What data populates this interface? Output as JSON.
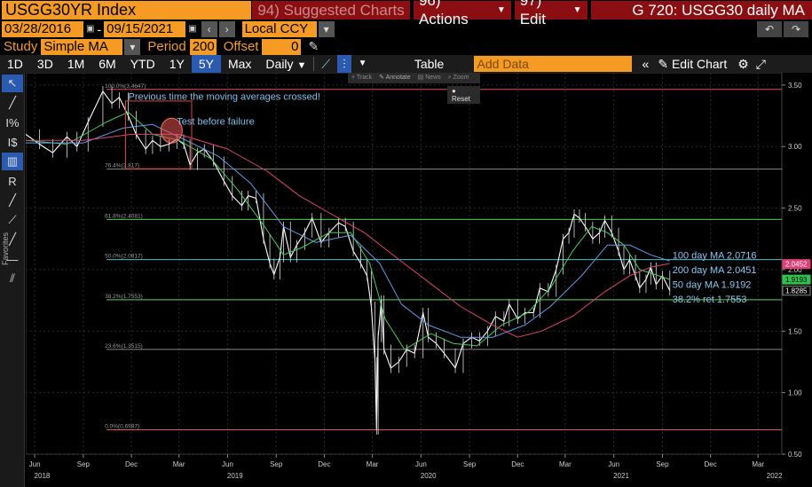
{
  "header": {
    "ticker": "USGG30YR Index",
    "suggested": "94) Suggested Charts",
    "actions": "96) Actions",
    "edit": "97) Edit",
    "chart_title": "G 720: USGG30 daily MA"
  },
  "range": {
    "start": "03/28/2016",
    "end": "09/15/2021",
    "currency": "Local CCY"
  },
  "study": {
    "label": "Study",
    "value": "Simple MA",
    "period_label": "Period",
    "period": "200",
    "offset_label": "Offset",
    "offset": "0"
  },
  "toolbar": {
    "periods": [
      "1D",
      "3D",
      "1M",
      "6M",
      "YTD",
      "1Y",
      "5Y",
      "Max"
    ],
    "active_period": "5Y",
    "frequency": "Daily",
    "table": "Table",
    "add_data": "Add Data",
    "edit_chart": "Edit Chart"
  },
  "chart_tools": {
    "items": [
      "Track",
      "Annotate",
      "News",
      "Zoom"
    ],
    "reset": "Reset"
  },
  "left_tools": {
    "favorites": "Favorites"
  },
  "chart_data": {
    "type": "line",
    "title": "",
    "ylim": [
      0.5,
      3.6
    ],
    "x_range": [
      "2018-05-15",
      "2022-04-15"
    ],
    "y_ticks": [
      "3.50",
      "3.00",
      "2.50",
      "2.00",
      "1.50",
      "1.00",
      "0.50"
    ],
    "x_tick_labels": [
      {
        "date": "2018-06-01",
        "label": "Jun"
      },
      {
        "date": "2018-09-01",
        "label": "Sep"
      },
      {
        "date": "2018-12-01",
        "label": "Dec"
      },
      {
        "date": "2019-03-01",
        "label": "Mar"
      },
      {
        "date": "2019-06-01",
        "label": "Jun"
      },
      {
        "date": "2019-09-01",
        "label": "Sep"
      },
      {
        "date": "2019-12-01",
        "label": "Dec"
      },
      {
        "date": "2020-03-01",
        "label": "Mar"
      },
      {
        "date": "2020-06-01",
        "label": "Jun"
      },
      {
        "date": "2020-09-01",
        "label": "Sep"
      },
      {
        "date": "2020-12-01",
        "label": "Dec"
      },
      {
        "date": "2021-03-01",
        "label": "Mar"
      },
      {
        "date": "2021-06-01",
        "label": "Jun"
      },
      {
        "date": "2021-09-01",
        "label": "Sep"
      },
      {
        "date": "2021-12-01",
        "label": "Dec"
      },
      {
        "date": "2022-03-01",
        "label": "Mar"
      }
    ],
    "year_labels": [
      {
        "date": "2018-06-15",
        "label": "2018"
      },
      {
        "date": "2019-06-15",
        "label": "2019"
      },
      {
        "date": "2020-06-15",
        "label": "2020"
      },
      {
        "date": "2021-06-15",
        "label": "2021"
      },
      {
        "date": "2022-04-01",
        "label": "2022"
      }
    ],
    "fib_levels": [
      {
        "label": "100.0%(3.4647)",
        "value": 3.4647,
        "color": "#e05060"
      },
      {
        "label": "76.4%(2.817)",
        "value": 2.817,
        "color": "#888888"
      },
      {
        "label": "61.8%(2.4081)",
        "value": 2.4081,
        "color": "#40d040"
      },
      {
        "label": "50.0%(2.0817)",
        "value": 2.0817,
        "color": "#40c0d0"
      },
      {
        "label": "38.2%(1.7553)",
        "value": 1.7553,
        "color": "#60d060"
      },
      {
        "label": "23.6%(1.3515)",
        "value": 1.3515,
        "color": "#888888"
      },
      {
        "label": "0.0%(0.6987)",
        "value": 0.6987,
        "color": "#e05060"
      }
    ],
    "series": [
      {
        "color": "#ffffff",
        "points": [
          [
            "2018-05-15",
            3.1
          ],
          [
            "2018-06-10",
            3.02
          ],
          [
            "2018-07-05",
            2.95
          ],
          [
            "2018-08-01",
            3.08
          ],
          [
            "2018-08-20",
            3.0
          ],
          [
            "2018-09-10",
            3.2
          ],
          [
            "2018-10-08",
            3.45
          ],
          [
            "2018-10-25",
            3.35
          ],
          [
            "2018-11-08",
            3.4
          ],
          [
            "2018-11-25",
            3.25
          ],
          [
            "2018-12-10",
            3.1
          ],
          [
            "2018-12-28",
            2.98
          ],
          [
            "2019-01-10",
            3.05
          ],
          [
            "2019-01-25",
            3.0
          ],
          [
            "2019-02-10",
            3.02
          ],
          [
            "2019-02-25",
            3.06
          ],
          [
            "2019-03-10",
            3.02
          ],
          [
            "2019-03-22",
            2.85
          ],
          [
            "2019-04-05",
            2.95
          ],
          [
            "2019-04-18",
            2.98
          ],
          [
            "2019-05-05",
            2.88
          ],
          [
            "2019-05-25",
            2.72
          ],
          [
            "2019-06-10",
            2.6
          ],
          [
            "2019-06-28",
            2.52
          ],
          [
            "2019-07-10",
            2.6
          ],
          [
            "2019-07-25",
            2.58
          ],
          [
            "2019-08-08",
            2.25
          ],
          [
            "2019-08-20",
            2.05
          ],
          [
            "2019-08-28",
            1.96
          ],
          [
            "2019-09-08",
            2.1
          ],
          [
            "2019-09-15",
            2.35
          ],
          [
            "2019-09-28",
            2.1
          ],
          [
            "2019-10-10",
            2.2
          ],
          [
            "2019-10-25",
            2.3
          ],
          [
            "2019-11-08",
            2.42
          ],
          [
            "2019-11-25",
            2.22
          ],
          [
            "2019-12-10",
            2.3
          ],
          [
            "2019-12-28",
            2.38
          ],
          [
            "2020-01-10",
            2.35
          ],
          [
            "2020-01-25",
            2.15
          ],
          [
            "2020-02-08",
            2.05
          ],
          [
            "2020-02-20",
            1.95
          ],
          [
            "2020-02-28",
            1.7
          ],
          [
            "2020-03-06",
            1.25
          ],
          [
            "2020-03-09",
            0.7
          ],
          [
            "2020-03-12",
            1.45
          ],
          [
            "2020-03-18",
            1.75
          ],
          [
            "2020-03-23",
            1.35
          ],
          [
            "2020-04-05",
            1.2
          ],
          [
            "2020-04-20",
            1.25
          ],
          [
            "2020-05-05",
            1.35
          ],
          [
            "2020-05-20",
            1.32
          ],
          [
            "2020-06-05",
            1.65
          ],
          [
            "2020-06-15",
            1.45
          ],
          [
            "2020-06-30",
            1.4
          ],
          [
            "2020-07-15",
            1.32
          ],
          [
            "2020-08-05",
            1.2
          ],
          [
            "2020-08-20",
            1.4
          ],
          [
            "2020-09-05",
            1.45
          ],
          [
            "2020-09-20",
            1.42
          ],
          [
            "2020-10-05",
            1.5
          ],
          [
            "2020-10-20",
            1.62
          ],
          [
            "2020-11-05",
            1.58
          ],
          [
            "2020-11-15",
            1.72
          ],
          [
            "2020-12-01",
            1.6
          ],
          [
            "2020-12-15",
            1.65
          ],
          [
            "2020-12-31",
            1.65
          ],
          [
            "2021-01-12",
            1.85
          ],
          [
            "2021-01-28",
            1.82
          ],
          [
            "2021-02-12",
            2.0
          ],
          [
            "2021-02-25",
            2.25
          ],
          [
            "2021-03-08",
            2.3
          ],
          [
            "2021-03-18",
            2.45
          ],
          [
            "2021-03-28",
            2.42
          ],
          [
            "2021-04-08",
            2.35
          ],
          [
            "2021-04-22",
            2.25
          ],
          [
            "2021-05-05",
            2.3
          ],
          [
            "2021-05-15",
            2.4
          ],
          [
            "2021-05-28",
            2.3
          ],
          [
            "2021-06-10",
            2.15
          ],
          [
            "2021-06-20",
            2.0
          ],
          [
            "2021-07-01",
            2.08
          ],
          [
            "2021-07-12",
            1.95
          ],
          [
            "2021-07-20",
            1.85
          ],
          [
            "2021-08-01",
            1.92
          ],
          [
            "2021-08-10",
            2.02
          ],
          [
            "2021-08-20",
            1.88
          ],
          [
            "2021-09-01",
            1.95
          ],
          [
            "2021-09-15",
            1.83
          ]
        ]
      },
      {
        "name": "50 day MA",
        "color": "#40d060",
        "points": [
          [
            "2018-05-15",
            3.05
          ],
          [
            "2018-08-01",
            3.02
          ],
          [
            "2018-10-15",
            3.2
          ],
          [
            "2018-11-25",
            3.28
          ],
          [
            "2019-01-10",
            3.1
          ],
          [
            "2019-03-01",
            3.05
          ],
          [
            "2019-05-01",
            2.9
          ],
          [
            "2019-06-20",
            2.65
          ],
          [
            "2019-08-10",
            2.35
          ],
          [
            "2019-09-15",
            2.12
          ],
          [
            "2019-10-20",
            2.18
          ],
          [
            "2019-12-10",
            2.3
          ],
          [
            "2020-01-20",
            2.3
          ],
          [
            "2020-02-25",
            2.05
          ],
          [
            "2020-03-25",
            1.6
          ],
          [
            "2020-05-01",
            1.35
          ],
          [
            "2020-06-20",
            1.48
          ],
          [
            "2020-08-01",
            1.4
          ],
          [
            "2020-09-15",
            1.38
          ],
          [
            "2020-11-01",
            1.55
          ],
          [
            "2020-12-20",
            1.65
          ],
          [
            "2021-02-01",
            1.85
          ],
          [
            "2021-03-15",
            2.15
          ],
          [
            "2021-04-20",
            2.35
          ],
          [
            "2021-05-20",
            2.3
          ],
          [
            "2021-06-20",
            2.2
          ],
          [
            "2021-07-20",
            2.0
          ],
          [
            "2021-09-15",
            1.92
          ]
        ]
      },
      {
        "name": "100 day MA",
        "color": "#60a0e8",
        "points": [
          [
            "2018-05-15",
            3.03
          ],
          [
            "2018-09-01",
            3.03
          ],
          [
            "2018-11-15",
            3.15
          ],
          [
            "2019-01-10",
            3.18
          ],
          [
            "2019-03-15",
            3.05
          ],
          [
            "2019-05-15",
            2.92
          ],
          [
            "2019-07-15",
            2.7
          ],
          [
            "2019-09-15",
            2.35
          ],
          [
            "2019-11-15",
            2.22
          ],
          [
            "2020-01-20",
            2.28
          ],
          [
            "2020-03-15",
            2.05
          ],
          [
            "2020-04-25",
            1.72
          ],
          [
            "2020-06-15",
            1.55
          ],
          [
            "2020-08-15",
            1.45
          ],
          [
            "2020-10-15",
            1.45
          ],
          [
            "2020-12-15",
            1.55
          ],
          [
            "2021-02-01",
            1.7
          ],
          [
            "2021-04-01",
            1.95
          ],
          [
            "2021-05-20",
            2.2
          ],
          [
            "2021-07-01",
            2.2
          ],
          [
            "2021-08-10",
            2.12
          ],
          [
            "2021-09-15",
            2.07
          ]
        ]
      },
      {
        "name": "200 day MA",
        "color": "#e0407a",
        "points": [
          [
            "2018-05-15",
            3.05
          ],
          [
            "2018-09-01",
            3.05
          ],
          [
            "2018-12-01",
            3.1
          ],
          [
            "2019-03-01",
            3.1
          ],
          [
            "2019-06-01",
            2.98
          ],
          [
            "2019-08-15",
            2.8
          ],
          [
            "2019-10-15",
            2.6
          ],
          [
            "2019-12-15",
            2.45
          ],
          [
            "2020-02-15",
            2.3
          ],
          [
            "2020-04-15",
            2.1
          ],
          [
            "2020-06-15",
            1.9
          ],
          [
            "2020-08-15",
            1.7
          ],
          [
            "2020-10-15",
            1.55
          ],
          [
            "2020-12-01",
            1.45
          ],
          [
            "2021-01-15",
            1.5
          ],
          [
            "2021-03-15",
            1.62
          ],
          [
            "2021-05-15",
            1.82
          ],
          [
            "2021-07-01",
            1.95
          ],
          [
            "2021-08-10",
            2.02
          ],
          [
            "2021-09-15",
            2.05
          ]
        ]
      }
    ],
    "value_badges": [
      {
        "label": "2.0452",
        "value": 2.0452,
        "bg": "#e0407a",
        "fg": "#ffffff"
      },
      {
        "label": "1.9193",
        "value": 1.9193,
        "bg": "#30c050",
        "fg": "#000000"
      },
      {
        "label": "1.8285",
        "value": 1.8285,
        "bg": "#000000",
        "fg": "#ffffff"
      }
    ],
    "legend_labels": [
      {
        "label": "100 day MA 2.0716",
        "color": "#8cc8f0"
      },
      {
        "label": "200 day MA 2.0451",
        "color": "#8cc8f0"
      },
      {
        "label": "50 day MA 1.9192",
        "color": "#8cc8f0"
      },
      {
        "label": "38.2% ret 1.7553",
        "color": "#8cc8f0"
      }
    ],
    "annotations": {
      "crossed": "Previous time the moving averages crossed!",
      "failure": "Test before failure",
      "box": {
        "x0": "2018-11-20",
        "x1": "2019-03-25",
        "y0": 2.82,
        "y1": 3.37
      },
      "circle": {
        "date": "2019-02-15",
        "value": 3.13
      }
    }
  }
}
